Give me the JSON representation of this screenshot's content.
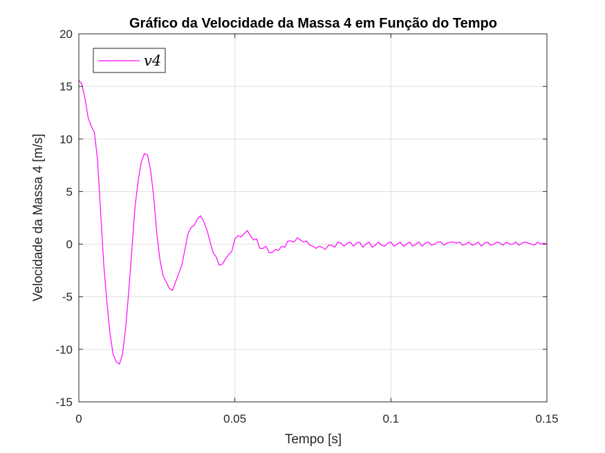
{
  "chart_data": {
    "type": "line",
    "title": "Gráfico da Velocidade da Massa 4 em Função do Tempo",
    "xlabel": "Tempo [s]",
    "ylabel": "Velocidade da Massa 4 [m/s]",
    "xlim": [
      0,
      0.15
    ],
    "ylim": [
      -15,
      20
    ],
    "xticks": [
      0,
      0.05,
      0.1,
      0.15
    ],
    "xtick_labels": [
      "0",
      "0.05",
      "0.1",
      "0.15"
    ],
    "yticks": [
      -15,
      -10,
      -5,
      0,
      5,
      10,
      15,
      20
    ],
    "ytick_labels": [
      "-15",
      "-10",
      "-5",
      "0",
      "5",
      "10",
      "15",
      "20"
    ],
    "grid": true,
    "legend_position": "top-left",
    "series": [
      {
        "name": "v4",
        "color": "#ff00ff",
        "x": [
          0,
          0.001,
          0.002,
          0.003,
          0.004,
          0.005,
          0.006,
          0.007,
          0.008,
          0.009,
          0.01,
          0.011,
          0.012,
          0.013,
          0.014,
          0.015,
          0.016,
          0.017,
          0.018,
          0.019,
          0.02,
          0.021,
          0.022,
          0.023,
          0.024,
          0.025,
          0.026,
          0.027,
          0.028,
          0.029,
          0.03,
          0.031,
          0.032,
          0.033,
          0.034,
          0.035,
          0.036,
          0.037,
          0.038,
          0.039,
          0.04,
          0.041,
          0.042,
          0.043,
          0.044,
          0.045,
          0.046,
          0.047,
          0.048,
          0.049,
          0.05,
          0.051,
          0.052,
          0.053,
          0.054,
          0.055,
          0.056,
          0.057,
          0.058,
          0.059,
          0.06,
          0.061,
          0.062,
          0.063,
          0.064,
          0.065,
          0.066,
          0.067,
          0.068,
          0.069,
          0.07,
          0.071,
          0.072,
          0.073,
          0.074,
          0.075,
          0.076,
          0.077,
          0.078,
          0.079,
          0.08,
          0.081,
          0.082,
          0.083,
          0.084,
          0.085,
          0.086,
          0.087,
          0.088,
          0.089,
          0.09,
          0.091,
          0.092,
          0.093,
          0.094,
          0.095,
          0.096,
          0.097,
          0.098,
          0.099,
          0.1,
          0.101,
          0.102,
          0.103,
          0.104,
          0.105,
          0.106,
          0.107,
          0.108,
          0.109,
          0.11,
          0.111,
          0.112,
          0.113,
          0.114,
          0.115,
          0.116,
          0.117,
          0.118,
          0.119,
          0.12,
          0.121,
          0.122,
          0.123,
          0.124,
          0.125,
          0.126,
          0.127,
          0.128,
          0.129,
          0.13,
          0.131,
          0.132,
          0.133,
          0.134,
          0.135,
          0.136,
          0.137,
          0.138,
          0.139,
          0.14,
          0.141,
          0.142,
          0.143,
          0.144,
          0.145,
          0.146,
          0.147,
          0.148,
          0.149,
          0.15
        ],
        "y": [
          15.6,
          15.2,
          13.8,
          12.0,
          11.2,
          10.6,
          8.0,
          3.0,
          -2.0,
          -5.5,
          -8.5,
          -10.5,
          -11.2,
          -11.4,
          -10.5,
          -8.0,
          -4.5,
          -0.5,
          3.5,
          6.0,
          7.8,
          8.6,
          8.5,
          7.0,
          4.5,
          1.0,
          -1.5,
          -3.0,
          -3.6,
          -4.2,
          -4.4,
          -3.6,
          -2.8,
          -2.0,
          -0.5,
          1.0,
          1.6,
          1.8,
          2.4,
          2.7,
          2.2,
          1.4,
          0.3,
          -0.8,
          -1.2,
          -2.0,
          -1.9,
          -1.4,
          -1.0,
          -0.7,
          0.5,
          0.8,
          0.7,
          1.0,
          1.3,
          0.8,
          0.4,
          0.5,
          -0.4,
          -0.4,
          -0.2,
          -0.8,
          -0.8,
          -0.5,
          -0.6,
          -0.2,
          -0.3,
          0.3,
          0.3,
          0.2,
          0.6,
          0.4,
          0.2,
          0.3,
          -0.1,
          -0.2,
          -0.4,
          -0.2,
          -0.3,
          -0.5,
          -0.1,
          -0.1,
          -0.3,
          0.2,
          0.1,
          -0.2,
          0.1,
          0.2,
          -0.2,
          0.1,
          0.2,
          -0.3,
          0.0,
          0.2,
          -0.3,
          -0.1,
          0.2,
          -0.1,
          -0.2,
          0.1,
          0.2,
          -0.2,
          0.0,
          0.2,
          -0.2,
          0.0,
          0.2,
          -0.2,
          0.0,
          0.2,
          -0.2,
          0.1,
          0.2,
          -0.1,
          0.0,
          0.2,
          0.2,
          -0.1,
          0.1,
          0.2,
          0.2,
          0.1,
          0.2,
          -0.1,
          0.0,
          0.2,
          -0.1,
          0.0,
          0.2,
          -0.2,
          0.1,
          0.2,
          -0.1,
          0.0,
          0.2,
          0.1,
          -0.1,
          0.2,
          0.0,
          0.0,
          0.2,
          -0.1,
          0.1,
          0.2,
          0.1,
          0.0,
          -0.1,
          0.2,
          0.0,
          0.1,
          0.0
        ]
      }
    ]
  }
}
